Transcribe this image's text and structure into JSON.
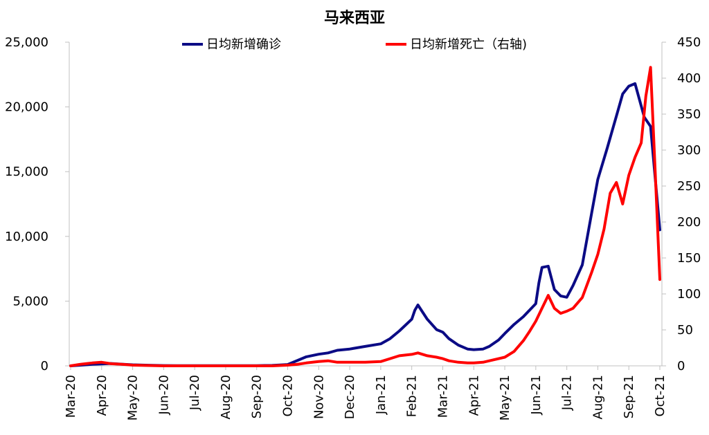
{
  "chart_data": {
    "type": "line",
    "title": "马来西亚",
    "x_categories": [
      "Mar-20",
      "Apr-20",
      "May-20",
      "Jun-20",
      "Jul-20",
      "Aug-20",
      "Sep-20",
      "Oct-20",
      "Nov-20",
      "Dec-20",
      "Jan-21",
      "Feb-21",
      "Mar-21",
      "Apr-21",
      "May-21",
      "Jun-21",
      "Jul-21",
      "Aug-21",
      "Sep-21",
      "Oct-21"
    ],
    "left_axis": {
      "ylim": [
        0,
        25000
      ],
      "ticks": [
        0,
        5000,
        10000,
        15000,
        20000,
        25000
      ],
      "tick_labels": [
        "0",
        "5,000",
        "10,000",
        "15,000",
        "20,000",
        "25,000"
      ]
    },
    "right_axis": {
      "ylim": [
        0,
        450
      ],
      "ticks": [
        0,
        50,
        100,
        150,
        200,
        250,
        300,
        350,
        400,
        450
      ],
      "tick_labels": [
        "0",
        "50",
        "100",
        "150",
        "200",
        "250",
        "300",
        "350",
        "400",
        "450"
      ]
    },
    "legend_position": "top-center",
    "series": [
      {
        "name": "日均新增确诊",
        "axis": "left",
        "color": "#0b0b85",
        "x": [
          0,
          0.3,
          0.7,
          1.0,
          1.3,
          1.7,
          2.0,
          2.5,
          3.0,
          3.5,
          4.0,
          5.0,
          6.0,
          6.5,
          7.0,
          7.3,
          7.6,
          8.0,
          8.3,
          8.6,
          9.0,
          9.5,
          10.0,
          10.3,
          10.6,
          11.0,
          11.1,
          11.2,
          11.5,
          11.8,
          12.0,
          12.2,
          12.5,
          12.8,
          13.0,
          13.3,
          13.5,
          13.8,
          14.0,
          14.3,
          14.6,
          15.0,
          15.1,
          15.2,
          15.4,
          15.6,
          15.8,
          16.0,
          16.2,
          16.5,
          16.8,
          17.0,
          17.3,
          17.6,
          17.8,
          18.0,
          18.2,
          18.5,
          18.7,
          19.0
        ],
        "values": [
          0,
          50,
          120,
          150,
          180,
          120,
          80,
          50,
          20,
          10,
          10,
          10,
          15,
          30,
          100,
          400,
          700,
          900,
          1000,
          1200,
          1300,
          1500,
          1700,
          2100,
          2700,
          3600,
          4300,
          4700,
          3600,
          2800,
          2600,
          2100,
          1600,
          1300,
          1250,
          1300,
          1500,
          2000,
          2500,
          3200,
          3800,
          4800,
          6400,
          7600,
          7700,
          5900,
          5400,
          5300,
          6200,
          7800,
          11800,
          14400,
          16800,
          19300,
          21000,
          21600,
          21800,
          19200,
          18500,
          10500
        ]
      },
      {
        "name": "日均新增死亡（右轴)",
        "axis": "right",
        "color": "#ff0000",
        "x": [
          0,
          0.3,
          0.7,
          1.0,
          1.3,
          1.7,
          2.0,
          3.0,
          4.0,
          5.0,
          6.0,
          6.5,
          7.0,
          7.3,
          7.6,
          8.0,
          8.3,
          8.6,
          9.0,
          9.5,
          10.0,
          10.3,
          10.6,
          11.0,
          11.2,
          11.5,
          11.8,
          12.0,
          12.2,
          12.5,
          12.8,
          13.0,
          13.3,
          13.6,
          14.0,
          14.3,
          14.6,
          14.8,
          15.0,
          15.2,
          15.4,
          15.6,
          15.8,
          16.0,
          16.2,
          16.5,
          16.8,
          17.0,
          17.2,
          17.4,
          17.6,
          17.8,
          18.0,
          18.2,
          18.4,
          18.55,
          18.7,
          18.85,
          19.0
        ],
        "values": [
          0,
          2,
          4,
          5,
          3,
          2,
          1,
          0,
          0,
          0,
          0,
          0,
          1,
          2,
          4,
          6,
          7,
          5,
          5,
          5,
          6,
          10,
          14,
          16,
          18,
          14,
          12,
          10,
          7,
          5,
          4,
          4,
          5,
          8,
          12,
          20,
          35,
          48,
          62,
          80,
          98,
          80,
          73,
          76,
          80,
          95,
          130,
          155,
          190,
          240,
          255,
          225,
          265,
          290,
          310,
          375,
          415,
          270,
          120
        ]
      }
    ]
  }
}
